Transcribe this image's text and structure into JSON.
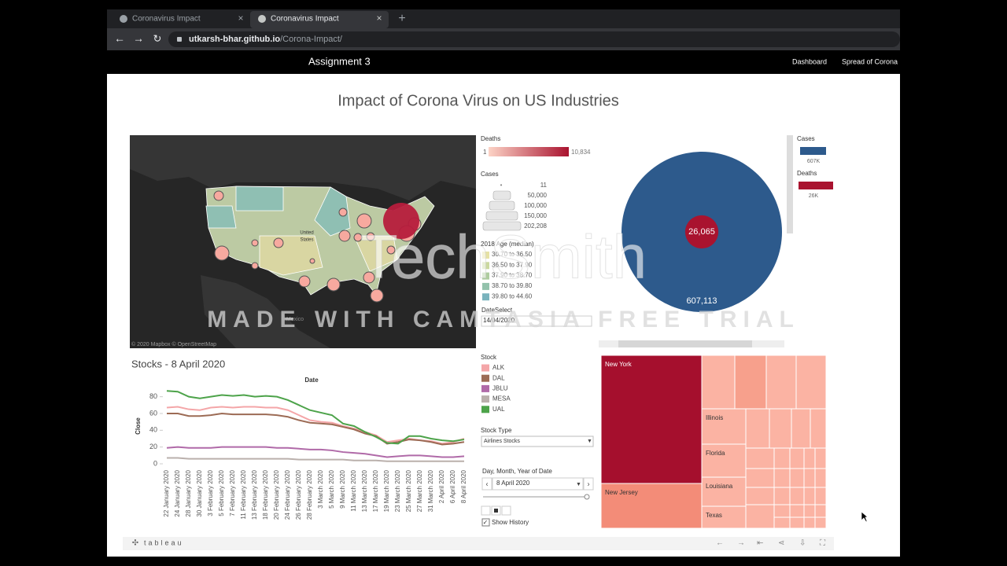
{
  "browser": {
    "tabs": [
      "Coronavirus Impact",
      "Coronavirus Impact"
    ],
    "url_host": "utkarsh-bhar.github.io",
    "url_path": "/Corona-Impact/"
  },
  "navbar": {
    "brand": "Assignment 3",
    "links": [
      "Dashboard",
      "Spread of Corona"
    ]
  },
  "dashboard": {
    "title": "Impact of Corona Virus on US Industries",
    "map": {
      "labels": [
        "United",
        "States",
        "Mexico"
      ],
      "attribution": "© 2020 Mapbox © OpenStreetMap"
    },
    "map_legend": {
      "deaths_title": "Deaths",
      "deaths_min": "1",
      "deaths_max": "10,834",
      "cases_title": "Cases",
      "cases_levels": [
        "11",
        "50,000",
        "100,000",
        "150,000",
        "202,208"
      ],
      "age_title": "2018 Age (median)",
      "age_bins": [
        {
          "label": "30.70 to 36.50",
          "color": "#e6e2a4"
        },
        {
          "label": "36.50 to 37.90",
          "color": "#cbd99e"
        },
        {
          "label": "37.90 to 38.70",
          "color": "#aecd9f"
        },
        {
          "label": "38.70 to 39.80",
          "color": "#93c2ac"
        },
        {
          "label": "39.80 to 44.60",
          "color": "#7ab3bd"
        }
      ],
      "date_title": "DateSelect",
      "date_value": "14/04/2020"
    },
    "controls": {
      "stock_legend_title": "Stock",
      "stock_type_title": "Stock Type",
      "stock_type_value": "Airlines Stocks",
      "date_filter_title": "Day, Month, Year of Date",
      "date_filter_value": "8 April 2020",
      "show_history": "Show History"
    },
    "bubble_legend": {
      "titles": [
        "Cases",
        "Deaths"
      ],
      "labels": [
        "607K",
        "26K"
      ]
    }
  },
  "watermark": {
    "brand": "TechSmith",
    "notice": "MADE WITH CAMTASIA FREE TRIAL"
  },
  "footer": {
    "brand": "tableau"
  },
  "chart_data": [
    {
      "type": "bubble",
      "categories": [
        "Cases",
        "Deaths"
      ],
      "values": [
        607113,
        26065
      ],
      "value_labels": [
        "607,113",
        "26,065"
      ],
      "colors": [
        "#2d5a8c",
        "#a9132f"
      ]
    },
    {
      "type": "line",
      "title": "Stocks - 8 April 2020",
      "x_label": "Date",
      "y_label": "Close",
      "categories": [
        "22 January 2020",
        "24 January 2020",
        "28 January 2020",
        "30 January 2020",
        "3 February 2020",
        "5 February 2020",
        "7 February 2020",
        "11 February 2020",
        "13 February 2020",
        "18 February 2020",
        "20 February 2020",
        "24 February 2020",
        "26 February 2020",
        "28 February 2020",
        "3 March 2020",
        "5 March 2020",
        "9 March 2020",
        "11 March 2020",
        "13 March 2020",
        "17 March 2020",
        "19 March 2020",
        "23 March 2020",
        "25 March 2020",
        "27 March 2020",
        "31 March 2020",
        "2 April 2020",
        "6 April 2020",
        "8 April 2020"
      ],
      "ylim": [
        0,
        90
      ],
      "yticks": [
        0,
        20,
        40,
        60,
        80
      ],
      "series": [
        {
          "name": "ALK",
          "color": "#f4a6a8",
          "values": [
            67,
            68,
            65,
            64,
            67,
            68,
            67,
            68,
            68,
            67,
            67,
            64,
            58,
            52,
            50,
            49,
            45,
            42,
            38,
            34,
            26,
            28,
            30,
            28,
            27,
            24,
            26,
            30
          ]
        },
        {
          "name": "DAL",
          "color": "#9c6b55",
          "values": [
            60,
            60,
            57,
            57,
            58,
            60,
            59,
            59,
            59,
            59,
            58,
            56,
            52,
            49,
            48,
            47,
            44,
            41,
            36,
            33,
            24,
            26,
            29,
            28,
            26,
            23,
            24,
            26
          ]
        },
        {
          "name": "JBLU",
          "color": "#b06aa8",
          "values": [
            19,
            20,
            19,
            19,
            19,
            20,
            20,
            20,
            20,
            20,
            19,
            19,
            18,
            17,
            17,
            16,
            14,
            13,
            12,
            10,
            8,
            9,
            10,
            10,
            9,
            8,
            8,
            9
          ]
        },
        {
          "name": "MESA",
          "color": "#bab0ac",
          "values": [
            7,
            7,
            6,
            6,
            6,
            6,
            6,
            6,
            6,
            6,
            6,
            6,
            5,
            5,
            5,
            5,
            5,
            4,
            4,
            4,
            3,
            3,
            3,
            3,
            3,
            3,
            3,
            3
          ]
        },
        {
          "name": "UAL",
          "color": "#4da34a",
          "values": [
            87,
            86,
            80,
            78,
            80,
            82,
            81,
            82,
            80,
            81,
            80,
            76,
            70,
            64,
            61,
            58,
            48,
            45,
            38,
            32,
            25,
            24,
            33,
            33,
            30,
            28,
            27,
            29
          ]
        }
      ]
    },
    {
      "type": "treemap",
      "categories": [
        "New York",
        "New Jersey",
        "Illinois",
        "Florida",
        "Louisiana",
        "Texas"
      ],
      "values": [
        202208,
        69000,
        24000,
        21000,
        20000,
        14000
      ],
      "colors": [
        "#a50f2d",
        "#f38c78",
        "#fbb3a3",
        "#fbb3a3",
        "#fbb3a3",
        "#fbb3a3"
      ]
    }
  ]
}
